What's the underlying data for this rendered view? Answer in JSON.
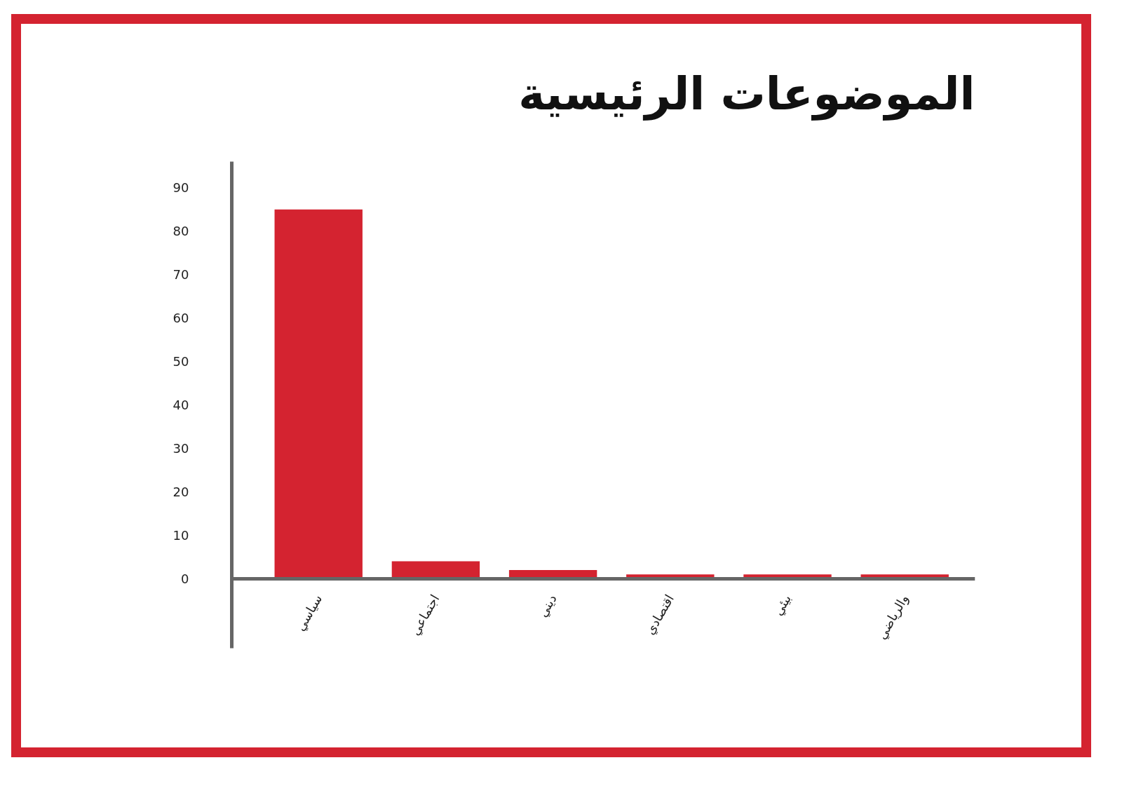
{
  "chart_data": {
    "type": "bar",
    "title": "الموضوعات الرئيسية",
    "categories": [
      "سياسي",
      "اجتماعي",
      "ديني",
      "اقتصادي",
      "بيئي",
      "والرياضي"
    ],
    "values": [
      85,
      4,
      2,
      1,
      1,
      1
    ],
    "color": "#d42330",
    "ylim": [
      -16,
      96
    ],
    "yticks": [
      0,
      10,
      20,
      30,
      40,
      50,
      60,
      70,
      80,
      90
    ],
    "grid": false
  }
}
